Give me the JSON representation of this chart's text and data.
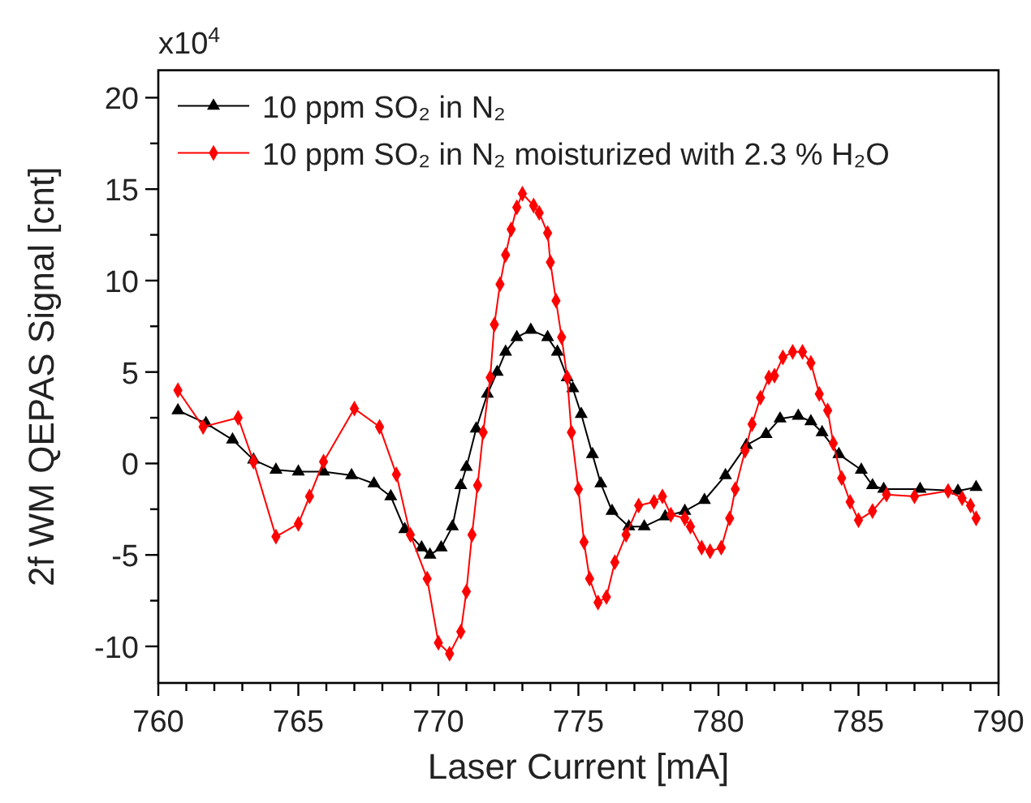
{
  "chart_data": {
    "type": "line",
    "xlabel": "Laser Current [mA]",
    "ylabel": "2f WM QEPAS Signal [cnt]",
    "annotations": [
      "x10$^{4}$"
    ],
    "xlim": [
      760,
      790
    ],
    "ylim": [
      -12,
      21.5
    ],
    "xticks": [
      760,
      {
        "value": 761,
        "label": null
      },
      {
        "value": 762,
        "label": null
      },
      {
        "value": 763,
        "label": null
      },
      {
        "value": 764,
        "label": null
      },
      765,
      {
        "value": 766,
        "label": null
      },
      {
        "value": 767,
        "label": null
      },
      {
        "value": 768,
        "label": null
      },
      {
        "value": 769,
        "label": null
      },
      770,
      {
        "value": 771,
        "label": null
      },
      {
        "value": 772,
        "label": null
      },
      {
        "value": 773,
        "label": null
      },
      {
        "value": 774,
        "label": null
      },
      775,
      {
        "value": 776,
        "label": null
      },
      {
        "value": 777,
        "label": null
      },
      {
        "value": 778,
        "label": null
      },
      {
        "value": 779,
        "label": null
      },
      780,
      {
        "value": 781,
        "label": null
      },
      {
        "value": 782,
        "label": null
      },
      {
        "value": 783,
        "label": null
      },
      {
        "value": 784,
        "label": null
      },
      785,
      {
        "value": 786,
        "label": null
      },
      {
        "value": 787,
        "label": null
      },
      {
        "value": 788,
        "label": null
      },
      {
        "value": 789,
        "label": null
      },
      790
    ],
    "yticks": [
      -10,
      {
        "value": -7.5,
        "label": null
      },
      -5,
      {
        "value": -2.5,
        "label": null
      },
      0,
      {
        "value": 2.5,
        "label": null
      },
      5,
      {
        "value": 7.5,
        "label": null
      },
      10,
      {
        "value": 12.5,
        "label": null
      },
      15,
      {
        "value": 17.5,
        "label": null
      },
      20
    ],
    "grid": false,
    "legend": "top left",
    "line_style": "solid",
    "series": [
      {
        "name": "10 ppm SO₂ in N₂",
        "color": "#000000",
        "marker": "triangle",
        "x": [
          760.7,
          761.7,
          762.65,
          763.4,
          764.2,
          765.0,
          765.9,
          766.9,
          767.7,
          768.3,
          768.8,
          769.4,
          769.7,
          770.1,
          770.5,
          770.8,
          771.0,
          771.35,
          771.75,
          772.1,
          772.4,
          772.8,
          773.3,
          773.9,
          774.25,
          774.6,
          774.8,
          775.1,
          775.5,
          775.8,
          776.2,
          776.8,
          777.35,
          778.1,
          778.8,
          779.5,
          780.25,
          781.0,
          781.7,
          782.2,
          782.85,
          783.3,
          783.7,
          784.3,
          785.1,
          785.5,
          785.9,
          787.2,
          788.55,
          789.2
        ],
        "values": [
          2.9,
          2.2,
          1.3,
          0.2,
          -0.35,
          -0.45,
          -0.45,
          -0.65,
          -1.1,
          -1.8,
          -3.6,
          -4.6,
          -5.0,
          -4.6,
          -3.45,
          -1.2,
          -0.2,
          1.9,
          3.8,
          5.0,
          6.1,
          6.9,
          7.3,
          6.9,
          6.1,
          4.7,
          4.1,
          2.7,
          0.5,
          -1.1,
          -2.6,
          -3.45,
          -3.45,
          -2.9,
          -2.6,
          -2.0,
          -0.65,
          1.0,
          1.6,
          2.45,
          2.6,
          2.3,
          1.7,
          0.5,
          -0.35,
          -1.2,
          -1.4,
          -1.4,
          -1.5,
          -1.3
        ]
      },
      {
        "name": "10 ppm SO₂ in N₂ moisturized with 2.3 % H₂O",
        "color": "#ff0000",
        "marker": "diamond",
        "x": [
          760.7,
          761.6,
          762.85,
          763.4,
          764.2,
          765.0,
          765.4,
          765.9,
          767.0,
          767.9,
          768.5,
          769.0,
          769.6,
          770.0,
          770.4,
          770.8,
          771.0,
          771.2,
          771.4,
          771.6,
          771.85,
          772.0,
          772.2,
          772.4,
          772.6,
          772.8,
          773.0,
          773.4,
          773.6,
          773.9,
          774.0,
          774.2,
          774.4,
          774.6,
          774.75,
          775.0,
          775.2,
          775.4,
          775.7,
          776.0,
          776.3,
          776.7,
          777.15,
          777.7,
          778.0,
          778.3,
          778.8,
          779.0,
          779.4,
          779.7,
          780.1,
          780.4,
          780.6,
          780.95,
          781.2,
          781.5,
          781.8,
          782.0,
          782.3,
          782.65,
          783.0,
          783.3,
          783.6,
          783.9,
          784.1,
          784.4,
          784.7,
          785.0,
          785.5,
          786.0,
          787.0,
          788.2,
          788.7,
          789.0,
          789.2
        ],
        "values": [
          4.0,
          2.0,
          2.5,
          0.1,
          -4.0,
          -3.3,
          -1.8,
          0.1,
          3.0,
          2.0,
          -0.6,
          -3.9,
          -6.3,
          -9.8,
          -10.4,
          -9.2,
          -7.0,
          -3.9,
          -1.2,
          1.7,
          4.7,
          7.6,
          9.8,
          11.4,
          12.8,
          14.0,
          14.75,
          14.1,
          13.7,
          12.6,
          11.0,
          8.9,
          6.9,
          4.7,
          1.7,
          -1.4,
          -4.3,
          -6.3,
          -7.6,
          -7.3,
          -5.4,
          -3.9,
          -2.3,
          -2.1,
          -1.8,
          -2.8,
          -3.0,
          -3.45,
          -4.6,
          -4.8,
          -4.6,
          -3.0,
          -1.4,
          0.7,
          2.15,
          3.6,
          4.7,
          4.8,
          5.8,
          6.1,
          6.1,
          5.5,
          3.8,
          2.9,
          1.1,
          -0.8,
          -2.1,
          -3.1,
          -2.6,
          -1.7,
          -1.8,
          -1.5,
          -1.9,
          -2.3,
          -3.0
        ]
      }
    ]
  }
}
